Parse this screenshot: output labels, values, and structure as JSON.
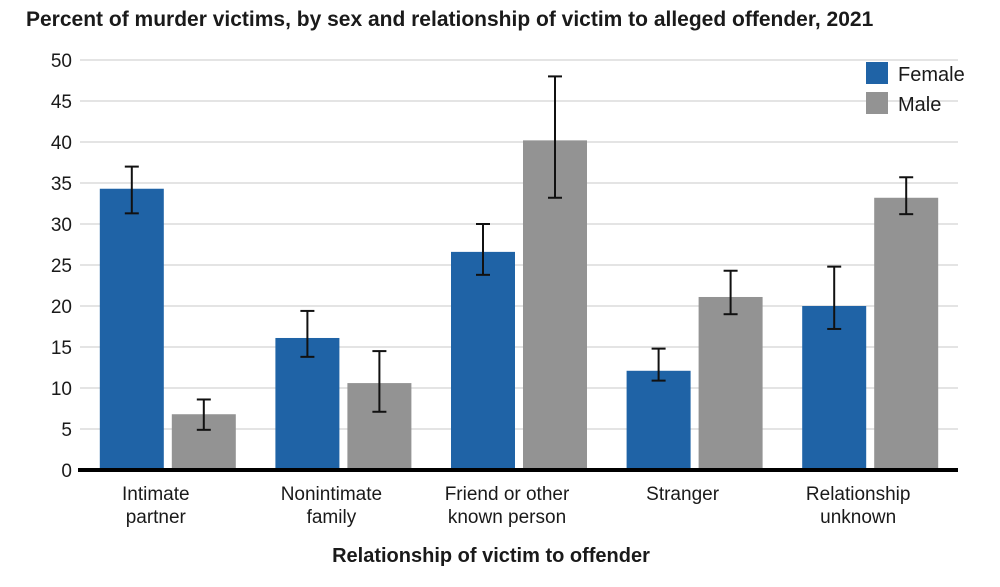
{
  "chart_data": {
    "type": "bar",
    "title": "Percent of murder victims, by sex and relationship of victim to alleged offender, 2021",
    "xlabel": "Relationship of victim to offender",
    "ylabel": "",
    "ylim": [
      0,
      50
    ],
    "yticks": [
      0,
      5,
      10,
      15,
      20,
      25,
      30,
      35,
      40,
      45,
      50
    ],
    "grid": true,
    "legend_position": "top-right",
    "categories": [
      [
        "Intimate",
        "partner"
      ],
      [
        "Nonintimate",
        "family"
      ],
      [
        "Friend or other",
        "known person"
      ],
      [
        "Stranger"
      ],
      [
        "Relationship",
        "unknown"
      ]
    ],
    "series": [
      {
        "name": "Female",
        "color": "#1f63a6",
        "values": [
          34.3,
          16.1,
          26.6,
          12.1,
          20.0
        ],
        "error_low": [
          31.3,
          13.8,
          23.8,
          10.9,
          17.2
        ],
        "error_high": [
          37.0,
          19.4,
          30.0,
          14.8,
          24.8
        ]
      },
      {
        "name": "Male",
        "color": "#939393",
        "values": [
          6.8,
          10.6,
          40.2,
          21.1,
          33.2
        ],
        "error_low": [
          4.9,
          7.1,
          33.2,
          19.0,
          31.2
        ],
        "error_high": [
          8.6,
          14.5,
          48.0,
          24.3,
          35.7
        ]
      }
    ]
  }
}
